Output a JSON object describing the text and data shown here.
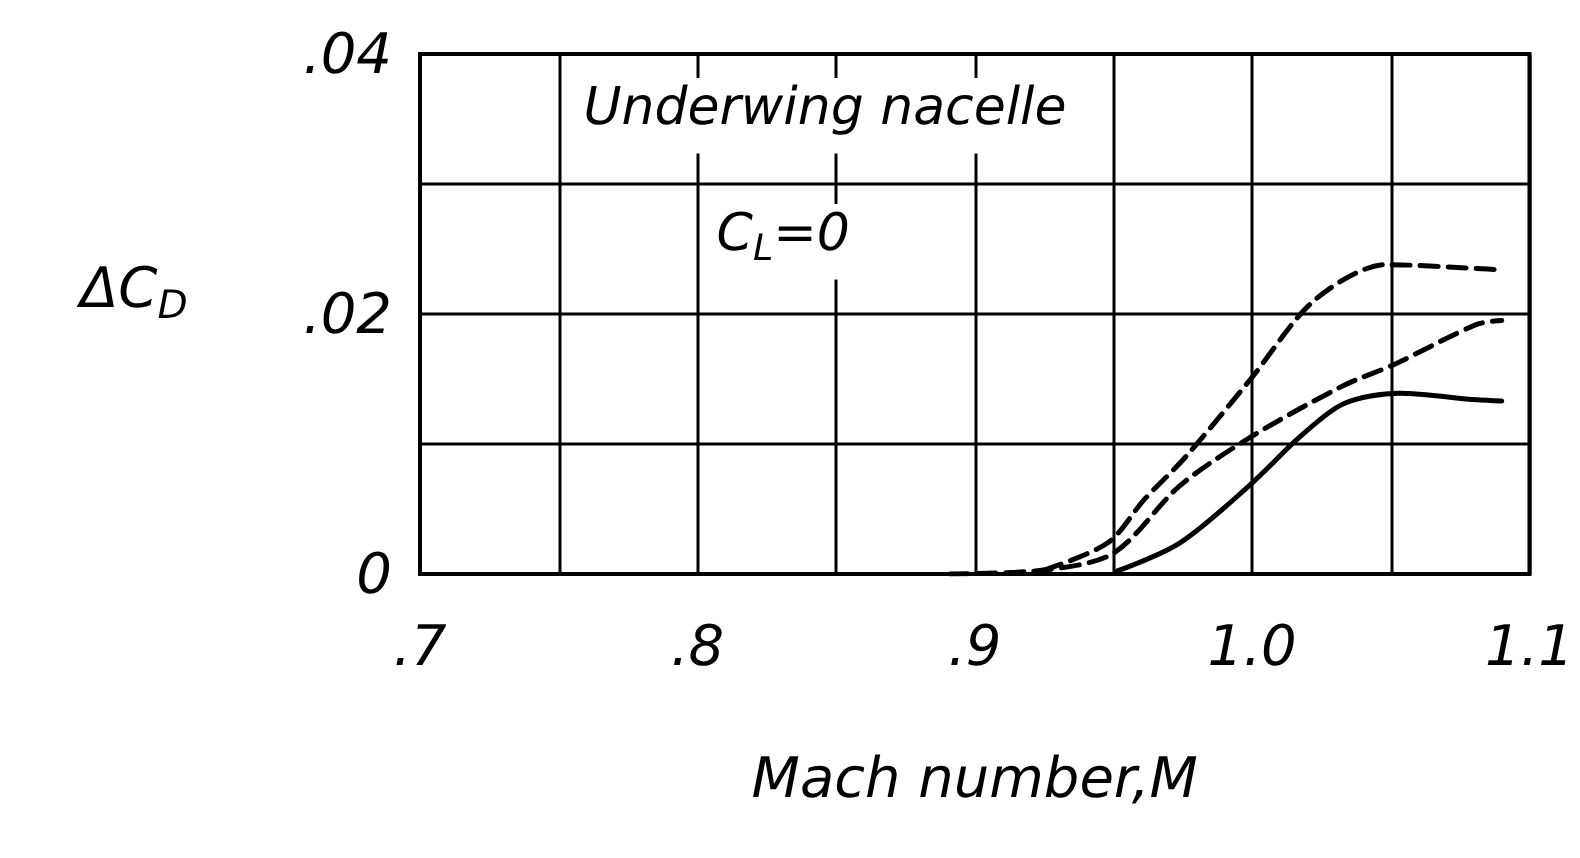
{
  "chart_data": {
    "type": "line",
    "xlabel": "Mach number,M",
    "ylabel": "ΔC$_{D}$",
    "annotations": [
      "Underwing nacelle",
      "C$_{L}$=0"
    ],
    "xlim": [
      0.7,
      1.1
    ],
    "ylim": [
      0,
      0.04
    ],
    "xticks": [
      {
        "value": 0.7,
        "label": ".7"
      },
      {
        "value": 0.75,
        "label": null
      },
      {
        "value": 0.8,
        "label": ".8"
      },
      {
        "value": 0.85,
        "label": null
      },
      {
        "value": 0.9,
        "label": ".9"
      },
      {
        "value": 0.95,
        "label": null
      },
      {
        "value": 1.0,
        "label": "1.0"
      },
      {
        "value": 1.05,
        "label": null
      },
      {
        "value": 1.1,
        "label": "1.1"
      }
    ],
    "yticks": [
      {
        "value": 0,
        "label": "0"
      },
      {
        "value": 0.01,
        "label": null
      },
      {
        "value": 0.02,
        "label": ".02"
      },
      {
        "value": 0.03,
        "label": null
      },
      {
        "value": 0.04,
        "label": ".04"
      }
    ],
    "grid": true,
    "marker": "none",
    "series": [
      {
        "color": "#000000",
        "line_style": "solid",
        "x": [
          0.951,
          0.974,
          0.999,
          1.0175,
          1.033,
          1.053,
          1.081,
          1.09
        ],
        "values": [
          0.0002,
          0.0024,
          0.0068,
          0.0106,
          0.0131,
          0.0139,
          0.0134,
          0.0133
        ]
      },
      {
        "color": "#000000",
        "line_style": "dashed",
        "x": [
          0.891,
          0.925,
          0.95,
          0.974,
          1.0,
          1.033,
          1.051,
          1.081,
          1.09
        ],
        "values": [
          0,
          0.0003,
          0.0016,
          0.0068,
          0.0106,
          0.0145,
          0.0161,
          0.0192,
          0.0195
        ]
      },
      {
        "color": "#000000",
        "line_style": "dashed",
        "x": [
          0.925,
          0.948,
          0.961,
          0.976,
          0.9995,
          1.0227,
          1.0485,
          1.081,
          1.09
        ],
        "values": [
          0.0003,
          0.0024,
          0.0057,
          0.009,
          0.015,
          0.0211,
          0.0238,
          0.0235,
          0.0234
        ]
      }
    ]
  }
}
